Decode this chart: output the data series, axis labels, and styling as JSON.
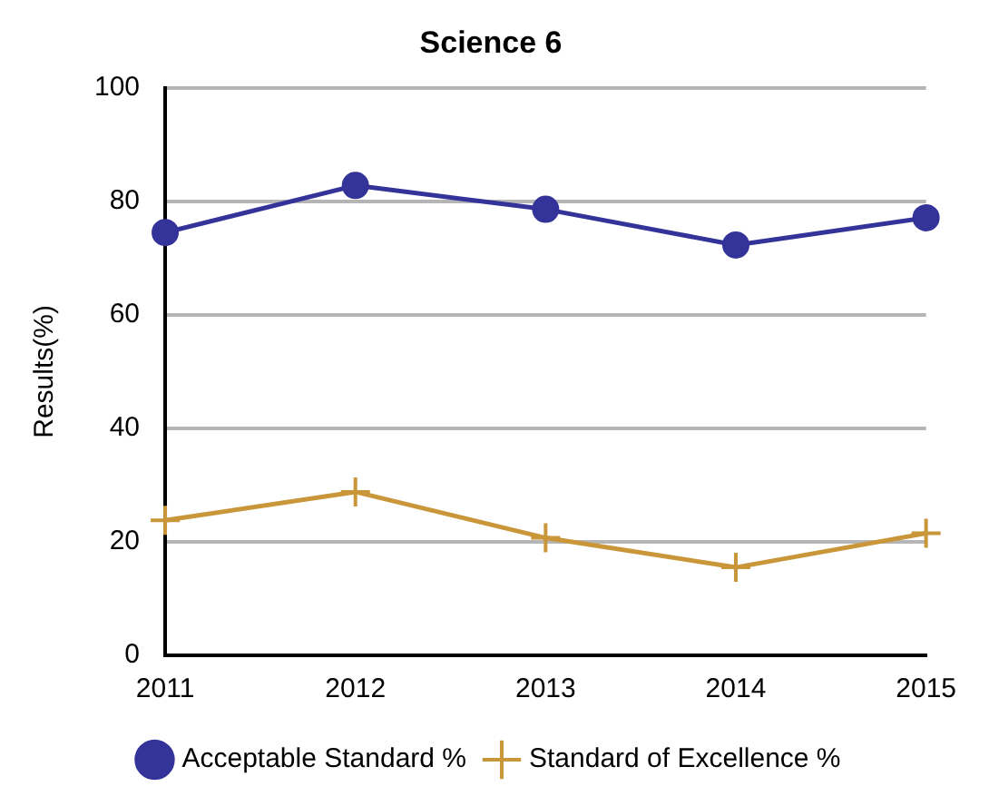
{
  "chart_data": {
    "type": "line",
    "title": "Science 6",
    "ylabel": "Results(%)",
    "categories": [
      "2011",
      "2012",
      "2013",
      "2014",
      "2015"
    ],
    "series": [
      {
        "name": "Acceptable Standard %",
        "color": "#333399",
        "marker": "circle",
        "values": [
          74.5,
          82.8,
          78.6,
          72.3,
          77.1
        ]
      },
      {
        "name": "Standard of Excellence %",
        "color": "#c9963a",
        "marker": "cross",
        "values": [
          23.8,
          28.8,
          20.7,
          15.5,
          21.5
        ]
      }
    ],
    "ylim": [
      0,
      100
    ],
    "yticks": [
      0,
      20,
      40,
      60,
      80,
      100
    ],
    "grid": "y",
    "legend": "bottom"
  }
}
